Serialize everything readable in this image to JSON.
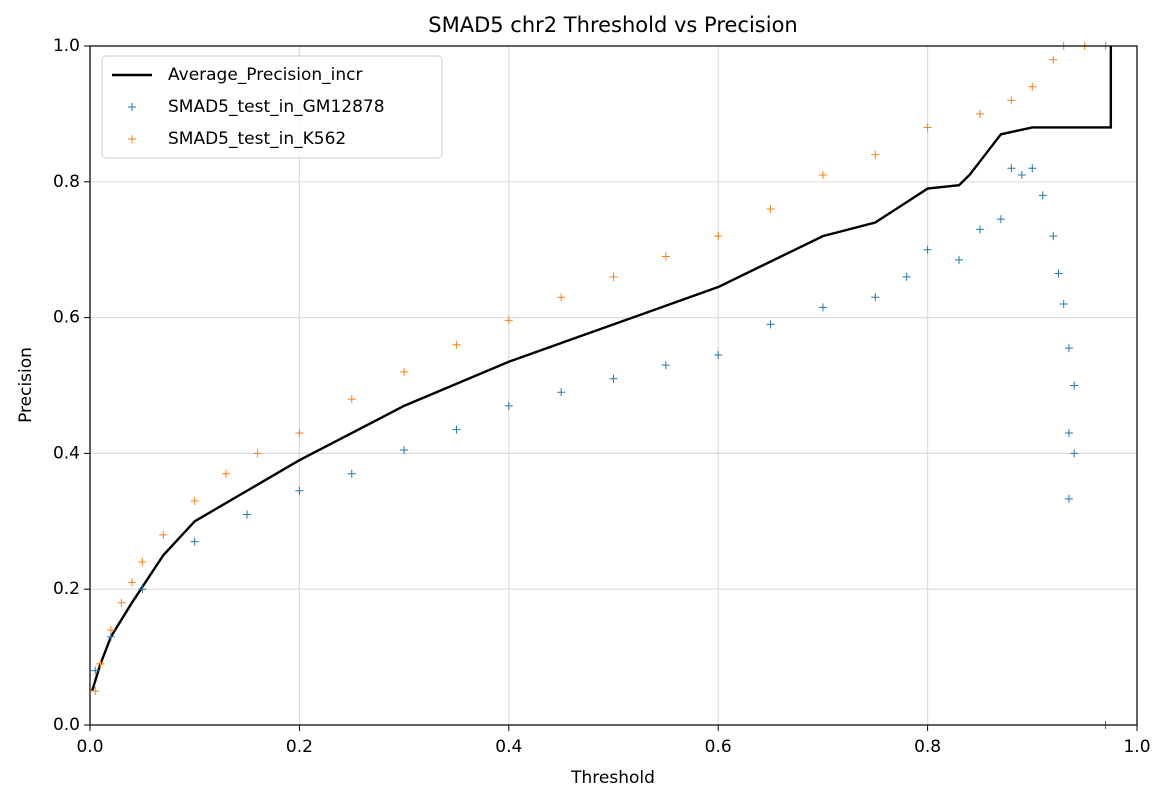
{
  "chart_data": {
    "type": "line",
    "title": "SMAD5 chr2 Threshold vs Precision",
    "x_label": "Threshold",
    "y_label": "Precision",
    "xlim": [
      0,
      1
    ],
    "ylim": [
      0,
      1
    ],
    "xticks": [
      {
        "value": 0,
        "label": "0.0"
      },
      0.2,
      0.4,
      0.6,
      0.8,
      {
        "value": 1,
        "label": "1.0"
      }
    ],
    "yticks": [
      {
        "value": 0,
        "label": "0.0"
      },
      0.2,
      0.4,
      0.6,
      0.8,
      {
        "value": 1,
        "label": "1.0"
      }
    ],
    "grid": true,
    "legend": "upper left",
    "series": [
      {
        "name": "Average_Precision_incr",
        "color": "#000000",
        "mark": "line",
        "x": [
          0.002,
          0.01,
          0.02,
          0.04,
          0.07,
          0.1,
          0.15,
          0.2,
          0.3,
          0.4,
          0.5,
          0.6,
          0.7,
          0.75,
          0.8,
          0.83,
          0.84,
          0.85,
          0.87,
          0.9,
          0.97,
          0.975,
          0.975
        ],
        "values": [
          0.05,
          0.09,
          0.13,
          0.18,
          0.25,
          0.3,
          0.345,
          0.39,
          0.47,
          0.535,
          0.59,
          0.645,
          0.72,
          0.74,
          0.79,
          0.795,
          0.81,
          0.83,
          0.87,
          0.88,
          0.88,
          0.88,
          1.0
        ]
      },
      {
        "name": "SMAD5_test_in_GM12878",
        "color": "#1f77b4",
        "mark": "plus",
        "x": [
          0.005,
          0.01,
          0.02,
          0.05,
          0.1,
          0.15,
          0.2,
          0.25,
          0.3,
          0.35,
          0.4,
          0.45,
          0.5,
          0.55,
          0.6,
          0.65,
          0.7,
          0.75,
          0.78,
          0.8,
          0.83,
          0.85,
          0.87,
          0.88,
          0.89,
          0.9,
          0.91,
          0.92,
          0.925,
          0.93,
          0.935,
          0.94,
          0.935,
          0.94,
          0.935,
          0.97
        ],
        "values": [
          0.08,
          0.09,
          0.13,
          0.2,
          0.27,
          0.31,
          0.345,
          0.37,
          0.405,
          0.435,
          0.47,
          0.49,
          0.51,
          0.53,
          0.545,
          0.59,
          0.615,
          0.63,
          0.66,
          0.7,
          0.685,
          0.73,
          0.745,
          0.82,
          0.81,
          0.82,
          0.78,
          0.72,
          0.665,
          0.62,
          0.555,
          0.5,
          0.43,
          0.4,
          0.333,
          0.0
        ]
      },
      {
        "name": "SMAD5_test_in_K562",
        "color": "#ff7f0e",
        "mark": "plus",
        "x": [
          0.005,
          0.01,
          0.02,
          0.03,
          0.04,
          0.05,
          0.07,
          0.1,
          0.13,
          0.16,
          0.2,
          0.25,
          0.3,
          0.35,
          0.4,
          0.45,
          0.5,
          0.55,
          0.6,
          0.65,
          0.7,
          0.75,
          0.8,
          0.85,
          0.88,
          0.9,
          0.92,
          0.93,
          0.95,
          0.97
        ],
        "values": [
          0.05,
          0.09,
          0.14,
          0.18,
          0.21,
          0.24,
          0.28,
          0.33,
          0.37,
          0.4,
          0.43,
          0.48,
          0.52,
          0.56,
          0.596,
          0.63,
          0.66,
          0.69,
          0.72,
          0.76,
          0.81,
          0.84,
          0.88,
          0.9,
          0.92,
          0.94,
          0.98,
          1.0,
          1.0,
          1.0
        ]
      }
    ]
  }
}
